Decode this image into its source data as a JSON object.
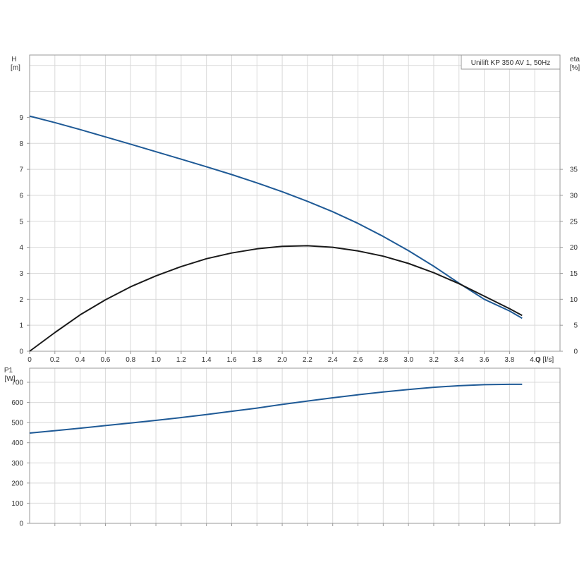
{
  "chart_data": [
    {
      "type": "line",
      "legend": "Unilift KP 350 AV 1, 50Hz",
      "legend_position": "top-right",
      "grid": true,
      "x_axis": {
        "label": "Q [l/s]",
        "range": [
          0,
          4.2
        ],
        "ticks": [
          "0",
          "0.2",
          "0.4",
          "0.6",
          "0.8",
          "1.0",
          "1.2",
          "1.4",
          "1.6",
          "1.8",
          "2.0",
          "2.2",
          "2.4",
          "2.6",
          "2.8",
          "3.0",
          "3.2",
          "3.4",
          "3.6",
          "3.8",
          "4.0"
        ]
      },
      "y_left": {
        "label_top": "H",
        "label_unit": "[m]",
        "range": [
          0,
          11.4
        ],
        "ticks": [
          "0",
          "1",
          "2",
          "3",
          "4",
          "5",
          "6",
          "7",
          "8",
          "9"
        ]
      },
      "y_right": {
        "label_top": "eta",
        "label_unit": "[%]",
        "range": [
          0,
          57
        ],
        "ticks": [
          "0",
          "5",
          "10",
          "15",
          "20",
          "25",
          "30",
          "35"
        ]
      },
      "series": [
        {
          "axis": "left",
          "color": "#1f5a96",
          "x": [
            0,
            0.2,
            0.4,
            0.6,
            0.8,
            1.0,
            1.2,
            1.4,
            1.6,
            1.8,
            2.0,
            2.2,
            2.4,
            2.6,
            2.8,
            3.0,
            3.2,
            3.4,
            3.6,
            3.8,
            3.9
          ],
          "values": [
            9.05,
            8.8,
            8.53,
            8.25,
            7.97,
            7.68,
            7.39,
            7.1,
            6.8,
            6.48,
            6.14,
            5.77,
            5.37,
            4.92,
            4.42,
            3.87,
            3.27,
            2.62,
            2.0,
            1.55,
            1.27
          ]
        },
        {
          "axis": "right",
          "color": "#1a1a1a",
          "x": [
            0,
            0.2,
            0.4,
            0.6,
            0.8,
            1.0,
            1.2,
            1.4,
            1.6,
            1.8,
            2.0,
            2.2,
            2.4,
            2.6,
            2.8,
            3.0,
            3.2,
            3.4,
            3.6,
            3.8,
            3.9
          ],
          "values": [
            0,
            3.6,
            7.0,
            9.9,
            12.4,
            14.5,
            16.3,
            17.8,
            18.9,
            19.7,
            20.2,
            20.3,
            20.0,
            19.3,
            18.3,
            16.9,
            15.1,
            13.0,
            10.6,
            8.2,
            6.9
          ]
        }
      ]
    },
    {
      "type": "line",
      "grid": true,
      "x_axis": {
        "range": [
          0,
          4.2
        ]
      },
      "y_left": {
        "label_top": "P1",
        "label_unit": "[W]",
        "range": [
          0,
          770
        ],
        "ticks": [
          "0",
          "100",
          "200",
          "300",
          "400",
          "500",
          "600",
          "700"
        ]
      },
      "series": [
        {
          "axis": "left",
          "color": "#1f5a96",
          "x": [
            0,
            0.2,
            0.4,
            0.6,
            0.8,
            1.0,
            1.2,
            1.4,
            1.6,
            1.8,
            2.0,
            2.2,
            2.4,
            2.6,
            2.8,
            3.0,
            3.2,
            3.4,
            3.6,
            3.8,
            3.9
          ],
          "values": [
            448,
            460,
            472,
            485,
            498,
            511,
            525,
            540,
            556,
            572,
            590,
            607,
            623,
            638,
            652,
            664,
            675,
            683,
            688,
            690,
            690
          ]
        }
      ]
    }
  ]
}
